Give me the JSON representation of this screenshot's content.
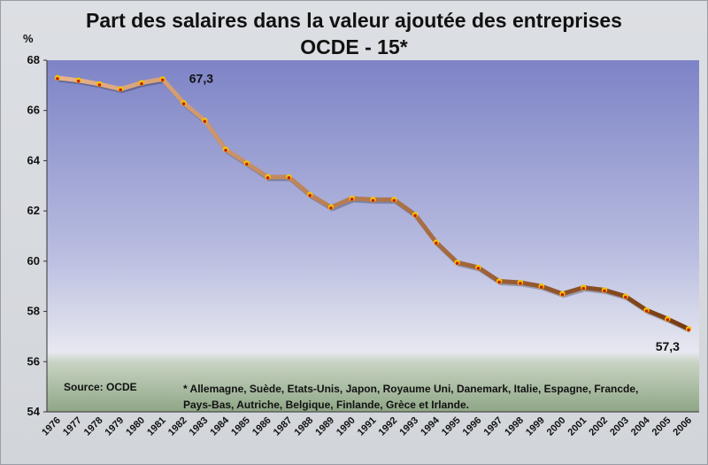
{
  "title_line1": "Part des salaires dans la valeur ajoutée des entreprises",
  "title_line2": "OCDE - 15*",
  "unit_label": "%",
  "source_text": "Source: OCDE",
  "note_text": "* Allemagne, Suède, Etats-Unis, Japon, Royaume Uni, Danemark, Italie, Espagne, Francde, Pays-Bas, Autriche, Belgique, Finlande, Grèce et Irlande.",
  "chart_data": {
    "type": "line",
    "title": "Part des salaires dans la valeur ajoutée des entreprises OCDE - 15*",
    "ylabel": "%",
    "ylim": [
      54,
      68
    ],
    "yticks": [
      54,
      56,
      58,
      60,
      62,
      64,
      66,
      68
    ],
    "grid": false,
    "categories": [
      "1976",
      "1977",
      "1978",
      "1979",
      "1980",
      "1981",
      "1982",
      "1983",
      "1984",
      "1985",
      "1986",
      "1987",
      "1988",
      "1989",
      "1990",
      "1991",
      "1992",
      "1993",
      "1994",
      "1995",
      "1996",
      "1997",
      "1998",
      "1999",
      "2000",
      "2001",
      "2002",
      "2003",
      "2004",
      "2005",
      "2006"
    ],
    "values": [
      67.3,
      67.2,
      67.05,
      66.85,
      67.1,
      67.25,
      66.3,
      65.6,
      64.45,
      63.9,
      63.35,
      63.35,
      62.65,
      62.15,
      62.5,
      62.45,
      62.45,
      61.85,
      60.75,
      59.95,
      59.75,
      59.2,
      59.15,
      59.0,
      58.7,
      58.95,
      58.85,
      58.6,
      58.05,
      57.7,
      57.3
    ],
    "annotations": [
      {
        "label": "67,3",
        "category": "1981"
      },
      {
        "label": "57,3",
        "category": "2005"
      }
    ],
    "colors": {
      "line_start": "#e8b48a",
      "line_end": "#7a3a10",
      "marker_fill": "#f5c400",
      "marker_dot": "#c81e00"
    }
  }
}
